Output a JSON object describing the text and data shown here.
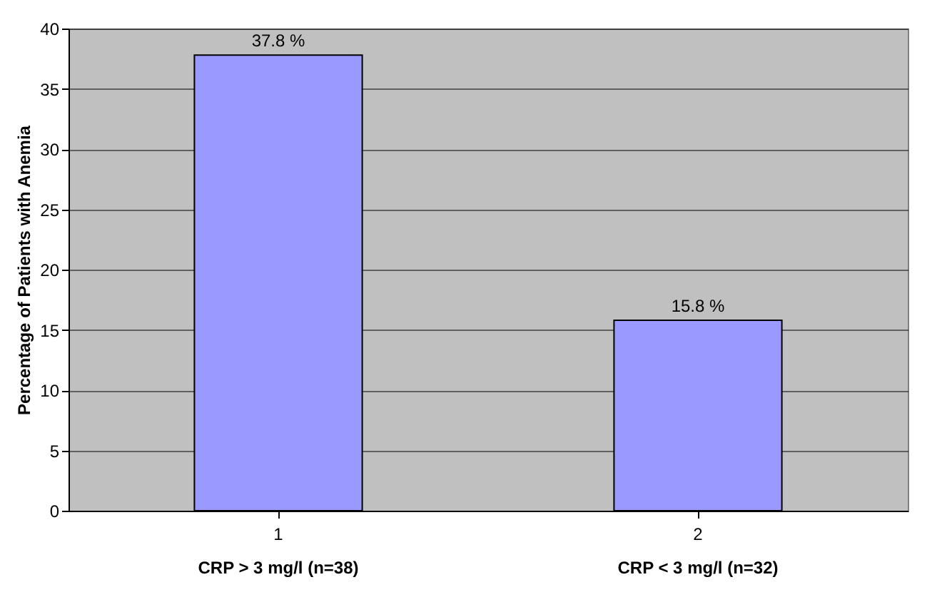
{
  "chart_data": {
    "type": "bar",
    "ylabel": "Percentage of Patients with Anemia",
    "categories": [
      "1",
      "2"
    ],
    "values": [
      37.8,
      15.8
    ],
    "value_labels": [
      "37.8 %",
      "15.8 %"
    ],
    "color": "#9999ff",
    "ylim": [
      0,
      40
    ],
    "yticks": [
      0,
      5,
      10,
      15,
      20,
      25,
      30,
      35,
      40
    ],
    "grid": "y",
    "annotations": [
      "CRP > 3 mg/l (n=38)",
      "CRP < 3 mg/l (n=32)"
    ]
  }
}
